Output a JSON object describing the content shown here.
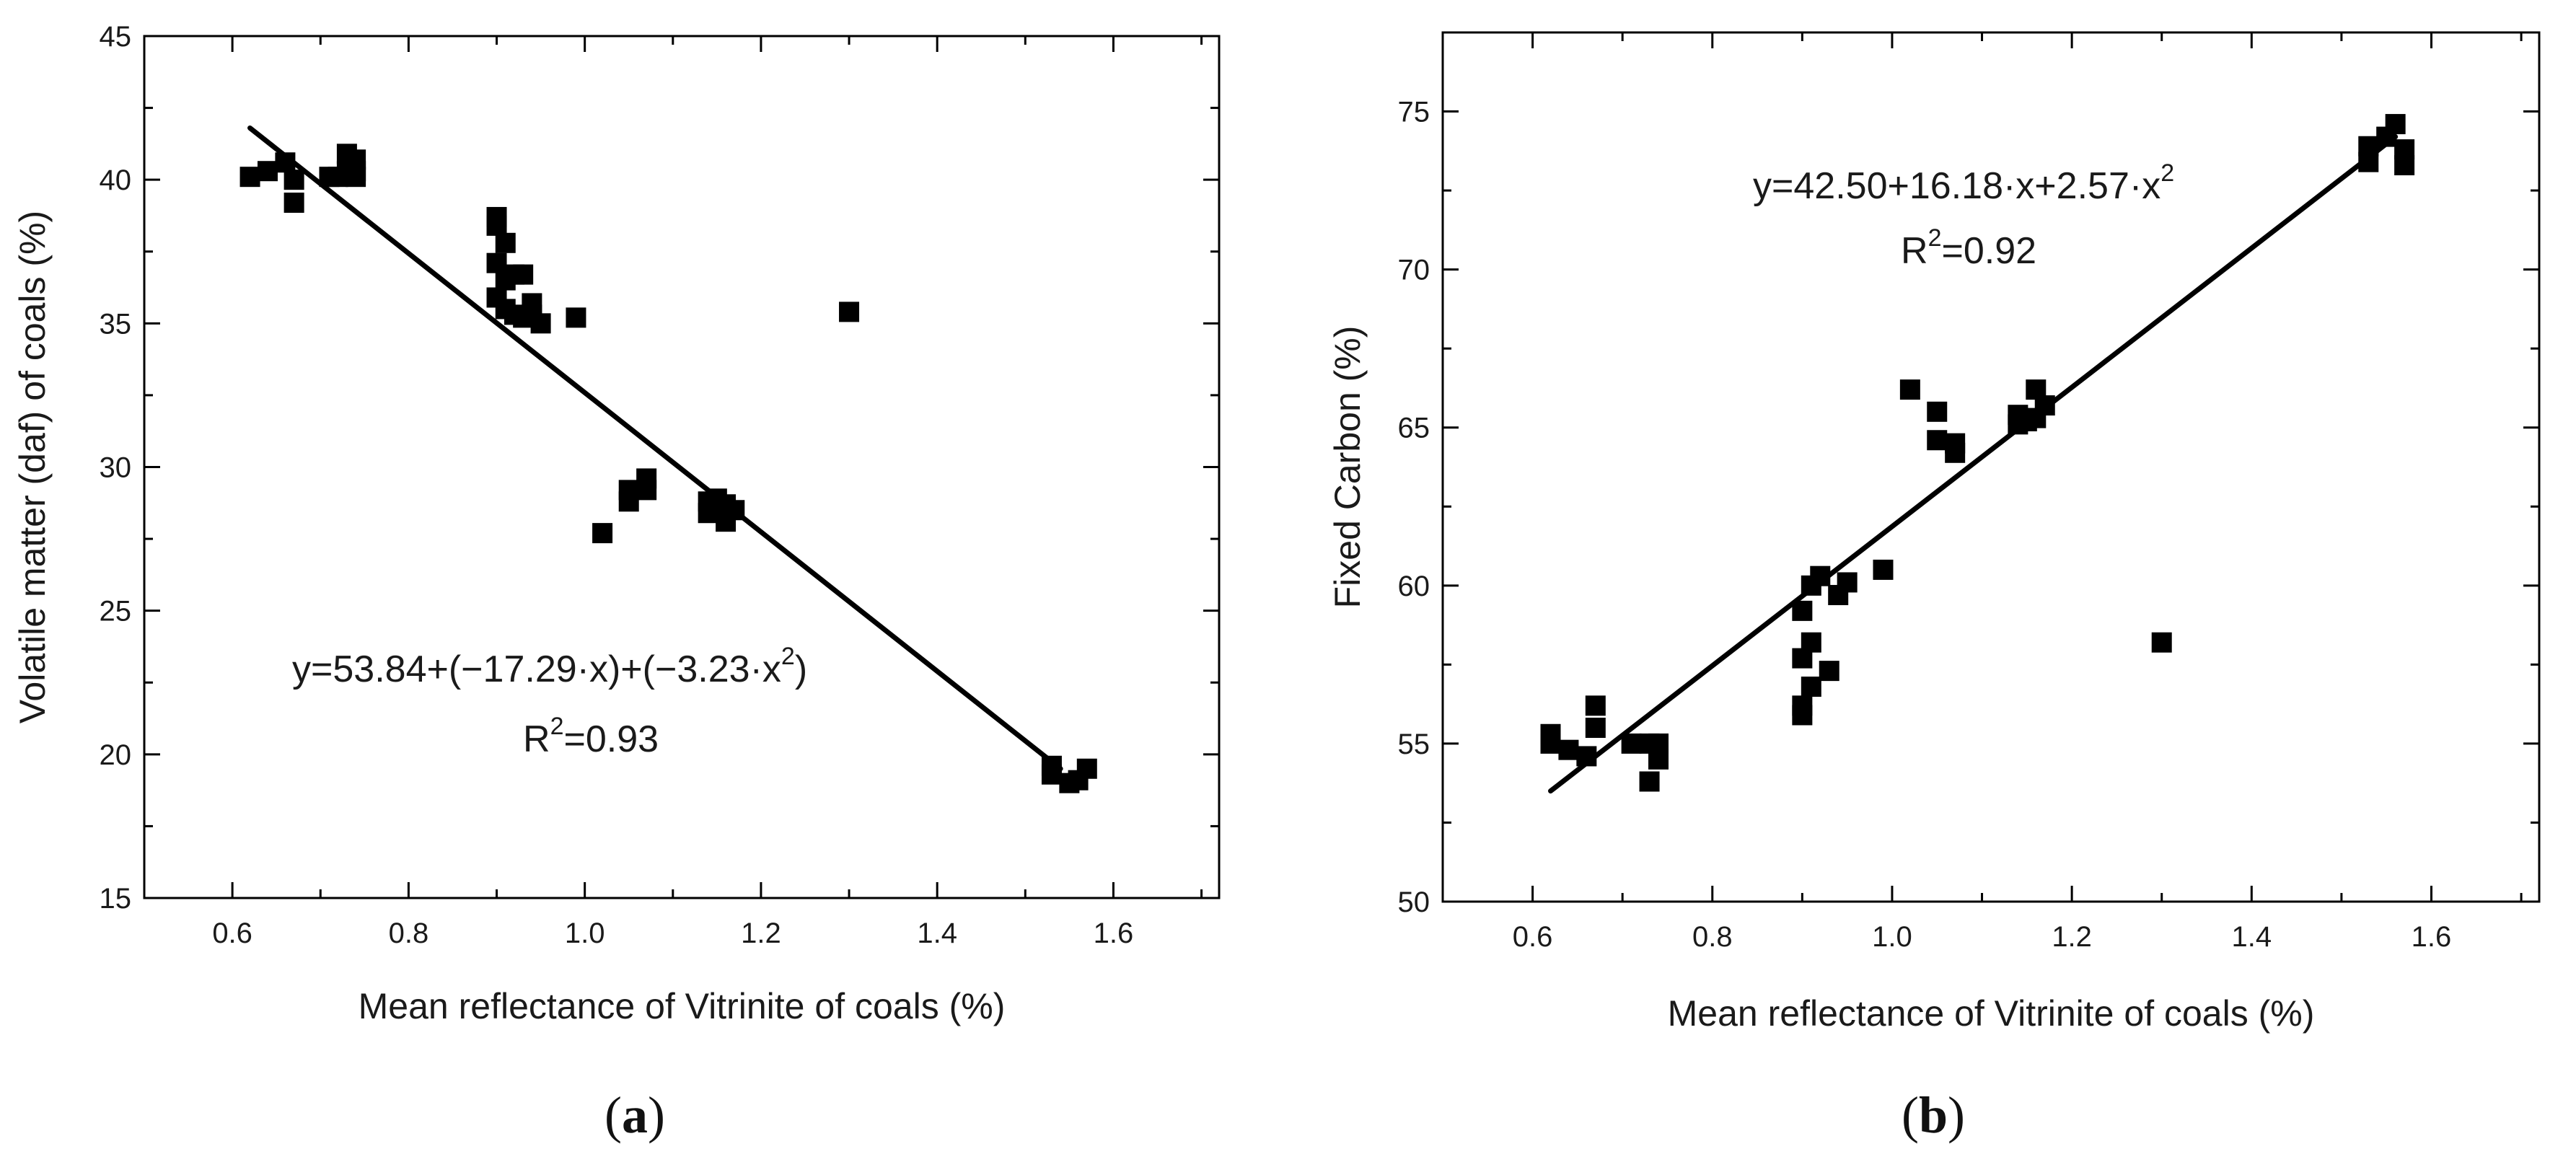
{
  "chart_data": [
    {
      "type": "scatter",
      "panel_label": "(a)",
      "panel_letter": "a",
      "xlabel": "Mean reflectance of Vitrinite of coals (%)",
      "ylabel": "Volatile matter (daf) of coals (%)",
      "xlim": [
        0.5,
        1.72
      ],
      "ylim": [
        15,
        45
      ],
      "xticks": [
        0.6,
        0.8,
        1.0,
        1.2,
        1.4,
        1.6
      ],
      "xtick_labels": [
        "0.6",
        "0.8",
        "1.0",
        "1.2",
        "1.4",
        "1.6"
      ],
      "yticks": [
        15,
        20,
        25,
        30,
        35,
        40,
        45
      ],
      "ytick_labels": [
        "15",
        "20",
        "25",
        "30",
        "35",
        "40",
        "45"
      ],
      "legend": "none",
      "grid": false,
      "equation": "y=53.84+(−17.29·x)+(−3.23·x",
      "equation_sup": "2",
      "equation_close": ")",
      "r2_prefix": "R",
      "r2_sup": "2",
      "r2_value": "=0.93",
      "fit_line": {
        "x": [
          0.62,
          1.54
        ],
        "y": [
          41.8,
          19.5
        ]
      },
      "x": [
        0.62,
        0.64,
        0.66,
        0.67,
        0.67,
        0.71,
        0.72,
        0.73,
        0.73,
        0.74,
        0.74,
        0.74,
        0.9,
        0.9,
        0.9,
        0.9,
        0.91,
        0.91,
        0.91,
        0.92,
        0.92,
        0.93,
        0.93,
        0.94,
        0.94,
        0.95,
        0.99,
        1.02,
        1.05,
        1.05,
        1.07,
        1.07,
        1.14,
        1.14,
        1.15,
        1.15,
        1.16,
        1.16,
        1.17,
        1.3,
        1.53,
        1.53,
        1.55,
        1.56,
        1.57
      ],
      "y": [
        40.1,
        40.3,
        40.6,
        40.0,
        39.2,
        40.1,
        40.1,
        40.9,
        40.3,
        40.7,
        40.3,
        40.1,
        38.7,
        38.4,
        37.1,
        35.9,
        37.8,
        36.5,
        35.5,
        36.7,
        35.3,
        36.7,
        35.2,
        35.7,
        35.3,
        35.0,
        35.2,
        27.7,
        29.2,
        28.8,
        29.6,
        29.2,
        28.8,
        28.4,
        28.6,
        28.9,
        28.1,
        28.7,
        28.5,
        35.4,
        19.6,
        19.3,
        19.0,
        19.1,
        19.5
      ]
    },
    {
      "type": "scatter",
      "panel_label": "(b)",
      "panel_letter": "b",
      "xlabel": "Mean reflectance of Vitrinite of coals (%)",
      "ylabel": "Fixed Carbon (%)",
      "xlim": [
        0.5,
        1.72
      ],
      "ylim": [
        50,
        77.5
      ],
      "xticks": [
        0.6,
        0.8,
        1.0,
        1.2,
        1.4,
        1.6
      ],
      "xtick_labels": [
        "0.6",
        "0.8",
        "1.0",
        "1.2",
        "1.4",
        "1.6"
      ],
      "yticks": [
        50,
        55,
        60,
        65,
        70,
        75
      ],
      "ytick_labels": [
        "50",
        "55",
        "60",
        "65",
        "70",
        "75"
      ],
      "legend": "none",
      "grid": false,
      "equation": "y=42.50+16.18·x+2.57·x",
      "equation_sup": "2",
      "equation_close": "",
      "r2_prefix": "R",
      "r2_sup": "2",
      "r2_value": "=0.92",
      "fit_line": {
        "x": [
          0.62,
          1.56
        ],
        "y": [
          53.5,
          74.2
        ]
      },
      "x": [
        0.62,
        0.62,
        0.64,
        0.66,
        0.67,
        0.67,
        0.71,
        0.73,
        0.73,
        0.74,
        0.74,
        0.9,
        0.9,
        0.9,
        0.9,
        0.91,
        0.91,
        0.91,
        0.92,
        0.93,
        0.94,
        0.95,
        0.99,
        1.02,
        1.05,
        1.05,
        1.07,
        1.07,
        1.14,
        1.14,
        1.15,
        1.16,
        1.16,
        1.17,
        1.3,
        1.53,
        1.53,
        1.55,
        1.56,
        1.57,
        1.57
      ],
      "y": [
        55.3,
        55.0,
        54.8,
        54.6,
        56.2,
        55.5,
        55.0,
        55.0,
        53.8,
        55.0,
        54.5,
        59.2,
        57.7,
        56.2,
        55.9,
        60.0,
        58.2,
        56.8,
        60.3,
        57.3,
        59.7,
        60.1,
        60.5,
        66.2,
        65.5,
        64.6,
        64.5,
        64.2,
        65.4,
        65.1,
        65.2,
        66.2,
        65.3,
        65.7,
        58.2,
        73.9,
        73.4,
        74.2,
        74.6,
        73.8,
        73.3
      ]
    }
  ]
}
